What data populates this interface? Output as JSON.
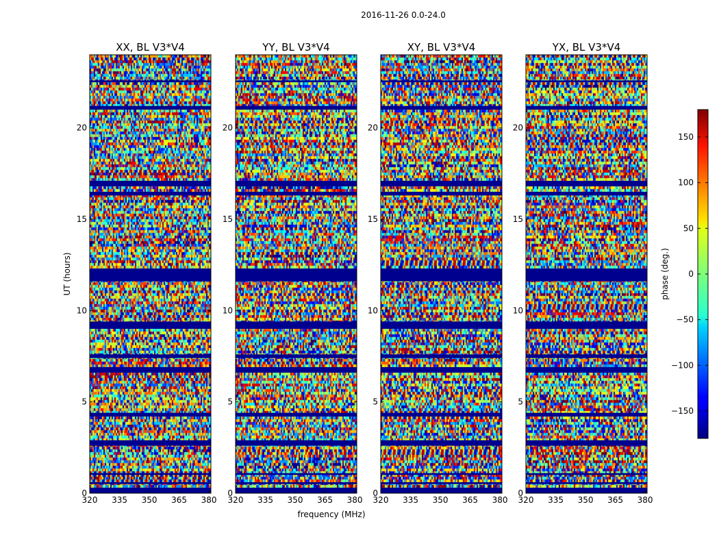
{
  "chart_data": {
    "type": "heatmap",
    "suptitle": "2016-11-26 0.0-24.0",
    "xlabel": "frequency (MHz)",
    "ylabel": "UT (hours)",
    "colorbar_label": "phase (deg.)",
    "colormap": "jet",
    "colorbar_range": [
      -180,
      180
    ],
    "colorbar_ticks": [
      150,
      100,
      50,
      0,
      -50,
      -100,
      -150
    ],
    "colorbar_tick_labels": [
      "150",
      "100",
      "50",
      "0",
      "−50",
      "−100",
      "−150"
    ],
    "xlim": [
      320,
      381
    ],
    "ylim": [
      0,
      24
    ],
    "x_ticks": [
      320,
      335,
      350,
      365,
      380
    ],
    "x_tick_labels": [
      "320",
      "335",
      "350",
      "365",
      "380"
    ],
    "y_ticks": [
      0,
      5,
      10,
      15,
      20
    ],
    "y_tick_labels": [
      "0",
      "5",
      "10",
      "15",
      "20"
    ],
    "panels": [
      {
        "title": "XX, BL V3*V4",
        "pol": "XX"
      },
      {
        "title": "YY, BL V3*V4",
        "pol": "YY"
      },
      {
        "title": "XY, BL V3*V4",
        "pol": "XY"
      },
      {
        "title": "YX, BL V3*V4",
        "pol": "YX"
      }
    ],
    "flagged_bands_hours": [
      [
        0.0,
        0.3
      ],
      [
        0.5,
        0.6
      ],
      [
        1.0,
        1.1
      ],
      [
        2.6,
        2.9
      ],
      [
        4.2,
        4.4
      ],
      [
        6.6,
        6.9
      ],
      [
        7.4,
        7.6
      ],
      [
        9.0,
        9.4
      ],
      [
        11.6,
        12.3
      ],
      [
        16.3,
        16.5
      ],
      [
        16.8,
        17.1
      ],
      [
        21.0,
        21.2
      ],
      [
        22.5,
        22.6
      ]
    ],
    "colors": {
      "flagged": "#00008f",
      "background": "#ffffff"
    }
  }
}
